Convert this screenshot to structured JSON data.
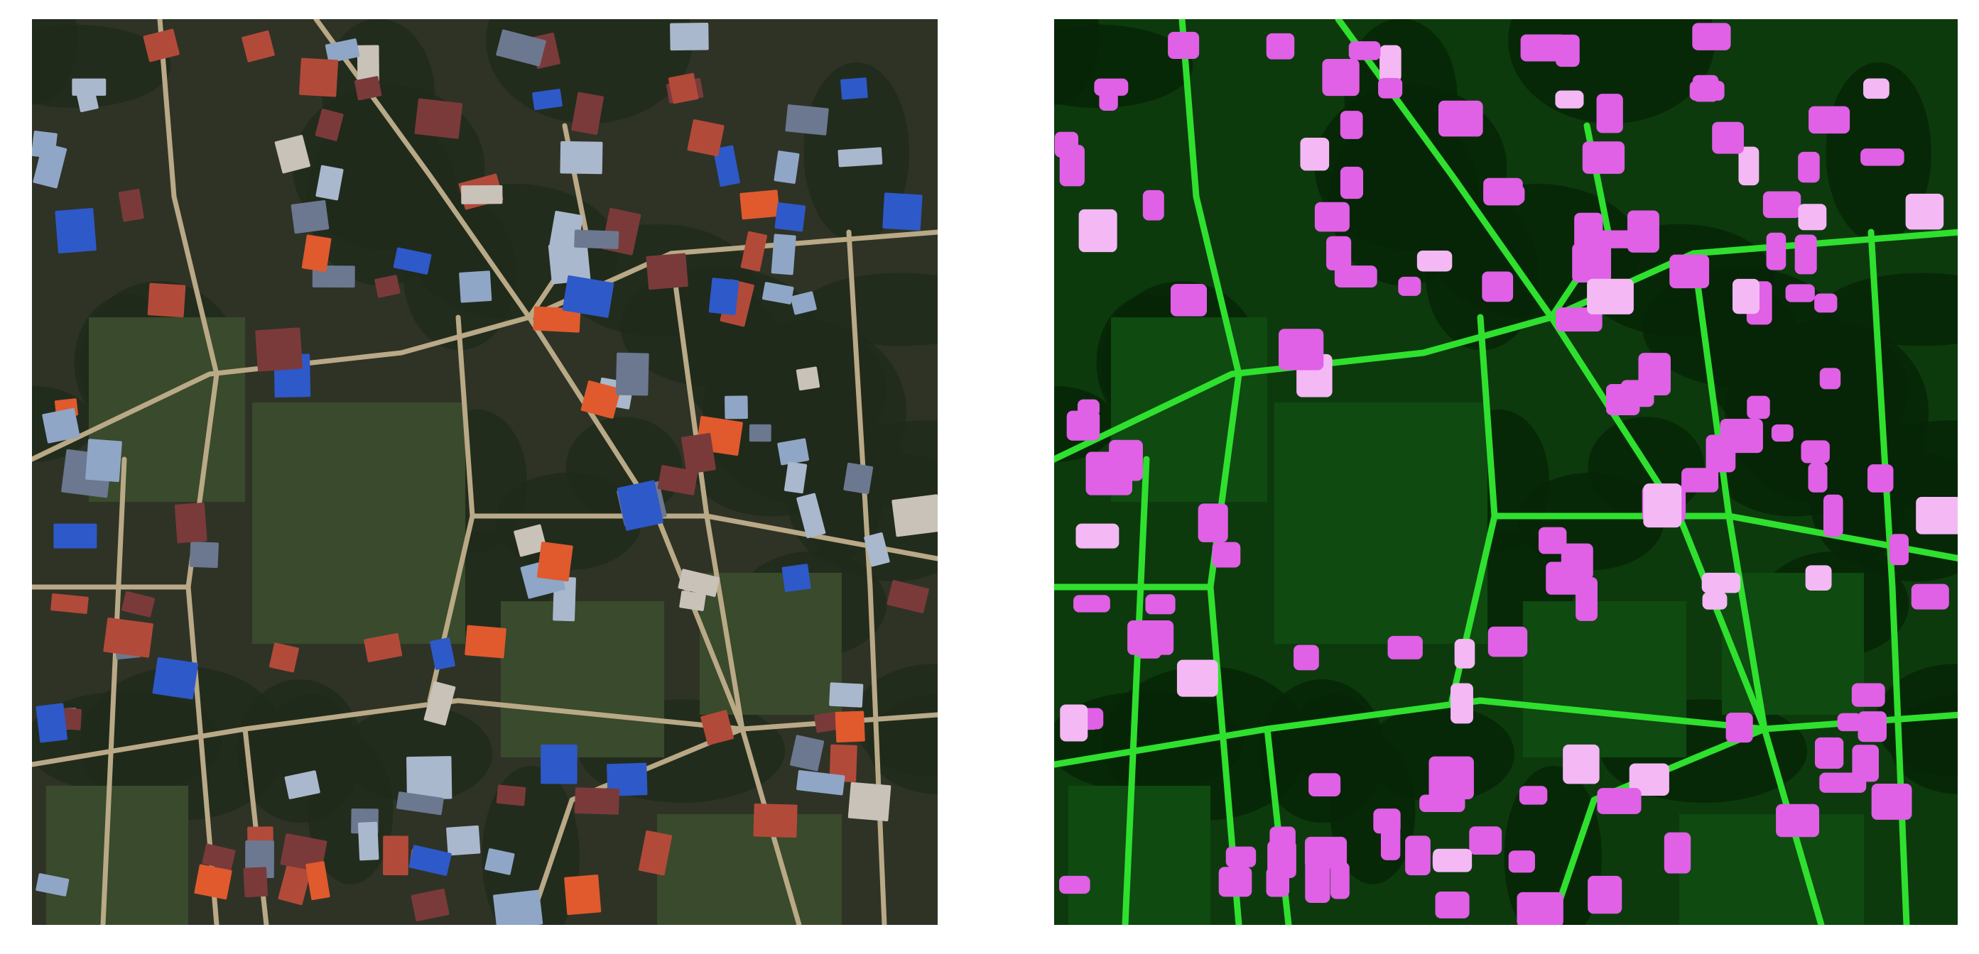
{
  "panels": [
    {
      "id": "rgb-satellite",
      "colors": {
        "background": "#2f3326",
        "vegetation": "#1f2a1c",
        "field": "#3a4a2c",
        "road": "#b9a987",
        "roofs": [
          "#8fa6c6",
          "#b24a3a",
          "#e05a2e",
          "#7b3a3a",
          "#a9b8cc",
          "#6c7890",
          "#c8c2b8",
          "#2e59c9"
        ]
      }
    },
    {
      "id": "building-segmentation",
      "colors": {
        "background": "#0d3a0d",
        "vegetation": "#062406",
        "field": "#0f4a10",
        "road": "#2fe02f",
        "building": "#e060e6",
        "building_highlight": "#f4b8f4"
      }
    }
  ]
}
